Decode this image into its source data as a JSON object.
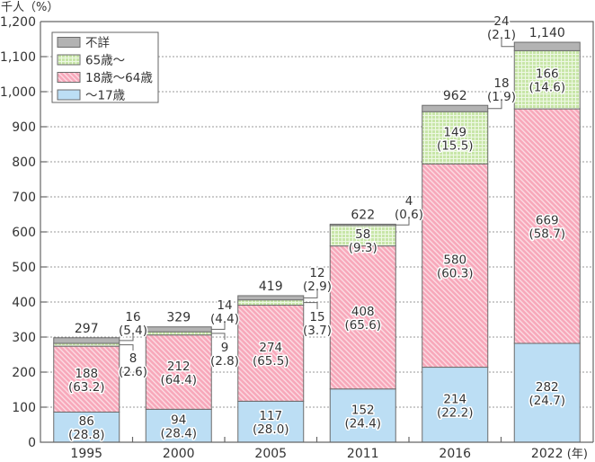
{
  "chart_data": {
    "type": "bar",
    "stacked": true,
    "title": "",
    "ylabel": "千人（%）",
    "xlabel": "(年)",
    "ylim": [
      0,
      1200
    ],
    "yticks": [
      0,
      100,
      200,
      300,
      400,
      500,
      600,
      700,
      800,
      900,
      1000,
      1100,
      1200
    ],
    "ytick_labels": [
      "0",
      "100",
      "200",
      "300",
      "400",
      "500",
      "600",
      "700",
      "800",
      "900",
      "1,000",
      "1,100",
      "1,200"
    ],
    "grid": true,
    "legend_position": "top-left",
    "categories": [
      "1995",
      "2000",
      "2005",
      "2011",
      "2016",
      "2022"
    ],
    "series": [
      {
        "name": "〜17歳",
        "color": "#bcdef4",
        "values": [
          86,
          94,
          117,
          152,
          214,
          282
        ],
        "percent": [
          "28.8",
          "28.4",
          "28.0",
          "24.4",
          "22.2",
          "24.7"
        ]
      },
      {
        "name": "18歳〜64歳",
        "color": "#f7a8ba",
        "values": [
          188,
          212,
          274,
          408,
          580,
          669
        ],
        "percent": [
          "63.2",
          "64.4",
          "65.5",
          "65.6",
          "60.3",
          "58.7"
        ]
      },
      {
        "name": "65歳〜",
        "color": "#c8e6a8",
        "values": [
          8,
          9,
          15,
          58,
          149,
          166
        ],
        "percent": [
          "2.6",
          "2.8",
          "3.7",
          "9.3",
          "15.5",
          "14.6"
        ]
      },
      {
        "name": "不詳",
        "color": "#b3b3b3",
        "values": [
          16,
          14,
          12,
          4,
          18,
          24
        ],
        "percent": [
          "5.4",
          "4.4",
          "2.9",
          "0.6",
          "1.9",
          "2.1"
        ]
      }
    ],
    "total_labels": [
      "297",
      "329",
      "419",
      "622",
      "962",
      "1,140"
    ],
    "legend": [
      "不詳",
      "65歳〜",
      "18歳〜64歳",
      "〜17歳"
    ]
  }
}
